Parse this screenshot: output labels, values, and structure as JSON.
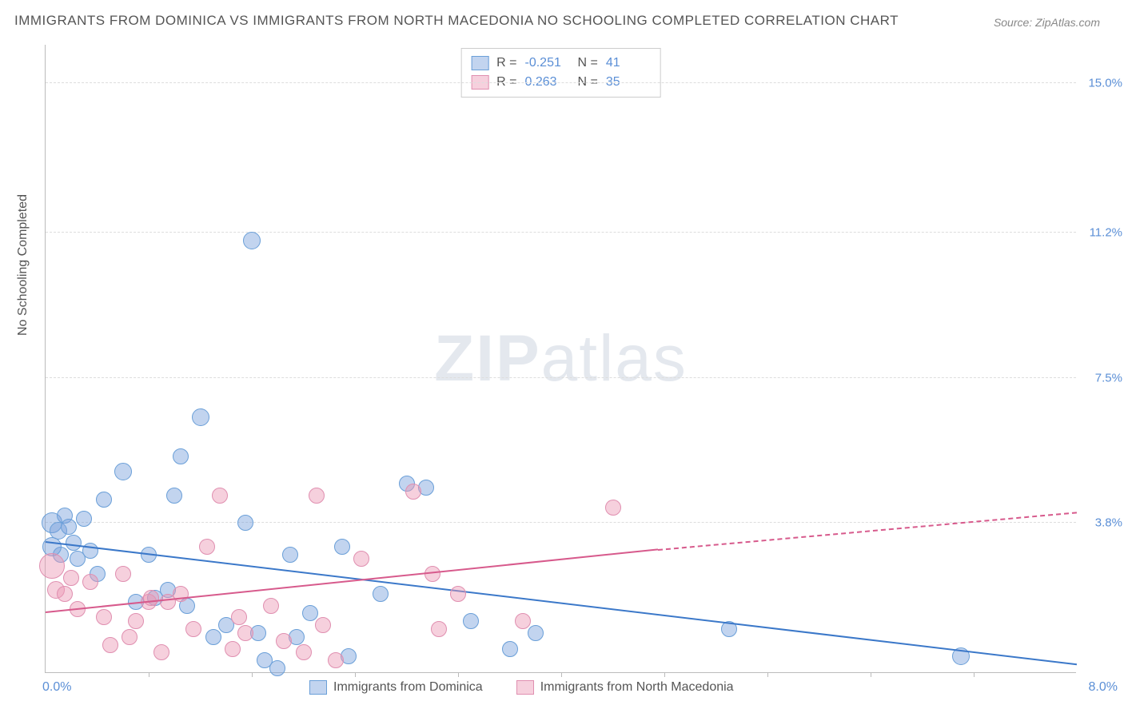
{
  "title": "IMMIGRANTS FROM DOMINICA VS IMMIGRANTS FROM NORTH MACEDONIA NO SCHOOLING COMPLETED CORRELATION CHART",
  "source": "Source: ZipAtlas.com",
  "watermark_a": "ZIP",
  "watermark_b": "atlas",
  "chart": {
    "type": "scatter",
    "y_axis_label": "No Schooling Completed",
    "x_min": 0.0,
    "x_max": 8.0,
    "x_left_label": "0.0%",
    "x_right_label": "8.0%",
    "x_ticks": [
      0.8,
      1.6,
      2.4,
      3.2,
      4.0,
      4.8,
      5.6,
      6.4,
      7.2
    ],
    "y_min": 0.0,
    "y_max": 16.0,
    "y_gridlines": [
      {
        "value": 3.8,
        "label": "3.8%"
      },
      {
        "value": 7.5,
        "label": "7.5%"
      },
      {
        "value": 11.2,
        "label": "11.2%"
      },
      {
        "value": 15.0,
        "label": "15.0%"
      }
    ],
    "background_color": "#ffffff",
    "grid_color": "#dddddd",
    "axis_color": "#bbbbbb",
    "tick_label_color": "#5b8fd6",
    "series": [
      {
        "name": "Immigrants from Dominica",
        "fill": "rgba(120,160,220,0.45)",
        "stroke": "#6a9fd8",
        "trend_color": "#3b78c9",
        "r_label": "R =",
        "r_value": "-0.251",
        "n_label": "N =",
        "n_value": "41",
        "marker_radius": 10,
        "trendline": {
          "x1": 0.0,
          "y1": 3.3,
          "x2": 8.0,
          "y2": 0.18
        },
        "points": [
          {
            "x": 0.05,
            "y": 3.8,
            "r": 13
          },
          {
            "x": 0.1,
            "y": 3.6,
            "r": 11
          },
          {
            "x": 0.12,
            "y": 3.0,
            "r": 10
          },
          {
            "x": 0.15,
            "y": 4.0,
            "r": 10
          },
          {
            "x": 0.18,
            "y": 3.7,
            "r": 10
          },
          {
            "x": 0.22,
            "y": 3.3,
            "r": 10
          },
          {
            "x": 0.05,
            "y": 3.2,
            "r": 12
          },
          {
            "x": 0.25,
            "y": 2.9,
            "r": 10
          },
          {
            "x": 0.3,
            "y": 3.9,
            "r": 10
          },
          {
            "x": 0.35,
            "y": 3.1,
            "r": 10
          },
          {
            "x": 0.4,
            "y": 2.5,
            "r": 10
          },
          {
            "x": 0.45,
            "y": 4.4,
            "r": 10
          },
          {
            "x": 0.6,
            "y": 5.1,
            "r": 11
          },
          {
            "x": 0.7,
            "y": 1.8,
            "r": 10
          },
          {
            "x": 0.8,
            "y": 3.0,
            "r": 10
          },
          {
            "x": 0.85,
            "y": 1.9,
            "r": 10
          },
          {
            "x": 0.95,
            "y": 2.1,
            "r": 10
          },
          {
            "x": 1.0,
            "y": 4.5,
            "r": 10
          },
          {
            "x": 1.05,
            "y": 5.5,
            "r": 10
          },
          {
            "x": 1.1,
            "y": 1.7,
            "r": 10
          },
          {
            "x": 1.2,
            "y": 6.5,
            "r": 11
          },
          {
            "x": 1.3,
            "y": 0.9,
            "r": 10
          },
          {
            "x": 1.4,
            "y": 1.2,
            "r": 10
          },
          {
            "x": 1.55,
            "y": 3.8,
            "r": 10
          },
          {
            "x": 1.6,
            "y": 11.0,
            "r": 11
          },
          {
            "x": 1.65,
            "y": 1.0,
            "r": 10
          },
          {
            "x": 1.7,
            "y": 0.3,
            "r": 10
          },
          {
            "x": 1.8,
            "y": 0.1,
            "r": 10
          },
          {
            "x": 1.9,
            "y": 3.0,
            "r": 10
          },
          {
            "x": 1.95,
            "y": 0.9,
            "r": 10
          },
          {
            "x": 2.05,
            "y": 1.5,
            "r": 10
          },
          {
            "x": 2.3,
            "y": 3.2,
            "r": 10
          },
          {
            "x": 2.35,
            "y": 0.4,
            "r": 10
          },
          {
            "x": 2.6,
            "y": 2.0,
            "r": 10
          },
          {
            "x": 2.8,
            "y": 4.8,
            "r": 10
          },
          {
            "x": 2.95,
            "y": 4.7,
            "r": 10
          },
          {
            "x": 3.3,
            "y": 1.3,
            "r": 10
          },
          {
            "x": 3.6,
            "y": 0.6,
            "r": 10
          },
          {
            "x": 3.8,
            "y": 1.0,
            "r": 10
          },
          {
            "x": 5.3,
            "y": 1.1,
            "r": 10
          },
          {
            "x": 7.1,
            "y": 0.4,
            "r": 11
          }
        ]
      },
      {
        "name": "Immigrants from North Macedonia",
        "fill": "rgba(235,150,180,0.45)",
        "stroke": "#e08fb0",
        "trend_color": "#d75a8c",
        "r_label": "R =",
        "r_value": "0.263",
        "n_label": "N =",
        "n_value": "35",
        "marker_radius": 10,
        "trendline_solid": {
          "x1": 0.0,
          "y1": 1.5,
          "x2": 4.75,
          "y2": 3.1
        },
        "trendline_dashed": {
          "x1": 4.75,
          "y1": 3.1,
          "x2": 8.0,
          "y2": 4.05
        },
        "points": [
          {
            "x": 0.05,
            "y": 2.7,
            "r": 16
          },
          {
            "x": 0.08,
            "y": 2.1,
            "r": 11
          },
          {
            "x": 0.15,
            "y": 2.0,
            "r": 10
          },
          {
            "x": 0.2,
            "y": 2.4,
            "r": 10
          },
          {
            "x": 0.25,
            "y": 1.6,
            "r": 10
          },
          {
            "x": 0.35,
            "y": 2.3,
            "r": 10
          },
          {
            "x": 0.45,
            "y": 1.4,
            "r": 10
          },
          {
            "x": 0.5,
            "y": 0.7,
            "r": 10
          },
          {
            "x": 0.6,
            "y": 2.5,
            "r": 10
          },
          {
            "x": 0.65,
            "y": 0.9,
            "r": 10
          },
          {
            "x": 0.7,
            "y": 1.3,
            "r": 10
          },
          {
            "x": 0.8,
            "y": 1.8,
            "r": 10
          },
          {
            "x": 0.82,
            "y": 1.9,
            "r": 10
          },
          {
            "x": 0.9,
            "y": 0.5,
            "r": 10
          },
          {
            "x": 0.95,
            "y": 1.8,
            "r": 10
          },
          {
            "x": 1.05,
            "y": 2.0,
            "r": 10
          },
          {
            "x": 1.15,
            "y": 1.1,
            "r": 10
          },
          {
            "x": 1.25,
            "y": 3.2,
            "r": 10
          },
          {
            "x": 1.35,
            "y": 4.5,
            "r": 10
          },
          {
            "x": 1.45,
            "y": 0.6,
            "r": 10
          },
          {
            "x": 1.5,
            "y": 1.4,
            "r": 10
          },
          {
            "x": 1.55,
            "y": 1.0,
            "r": 10
          },
          {
            "x": 1.75,
            "y": 1.7,
            "r": 10
          },
          {
            "x": 1.85,
            "y": 0.8,
            "r": 10
          },
          {
            "x": 2.0,
            "y": 0.5,
            "r": 10
          },
          {
            "x": 2.1,
            "y": 4.5,
            "r": 10
          },
          {
            "x": 2.15,
            "y": 1.2,
            "r": 10
          },
          {
            "x": 2.25,
            "y": 0.3,
            "r": 10
          },
          {
            "x": 2.45,
            "y": 2.9,
            "r": 10
          },
          {
            "x": 2.85,
            "y": 4.6,
            "r": 10
          },
          {
            "x": 3.0,
            "y": 2.5,
            "r": 10
          },
          {
            "x": 3.05,
            "y": 1.1,
            "r": 10
          },
          {
            "x": 3.2,
            "y": 2.0,
            "r": 10
          },
          {
            "x": 3.7,
            "y": 1.3,
            "r": 10
          },
          {
            "x": 4.4,
            "y": 4.2,
            "r": 10
          }
        ]
      }
    ]
  }
}
